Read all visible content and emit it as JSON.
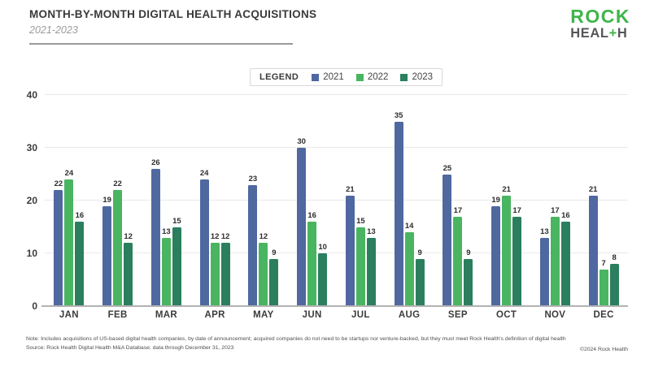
{
  "header": {
    "title": "MONTH-BY-MONTH DIGITAL HEALTH ACQUISITIONS",
    "subtitle": "2021-2023"
  },
  "logo": {
    "line1": "ROCK",
    "line2_pre": "HEAL",
    "line2_plus": "+",
    "line2_post": "H",
    "green": "#3eb549",
    "gray": "#54565a"
  },
  "legend": {
    "label": "LEGEND"
  },
  "chart_data": {
    "type": "bar",
    "title": "MONTH-BY-MONTH DIGITAL HEALTH ACQUISITIONS",
    "subtitle": "2021-2023",
    "categories": [
      "JAN",
      "FEB",
      "MAR",
      "APR",
      "MAY",
      "JUN",
      "JUL",
      "AUG",
      "SEP",
      "OCT",
      "NOV",
      "DEC"
    ],
    "series": [
      {
        "name": "2021",
        "color": "#4f68a0",
        "values": [
          22,
          19,
          26,
          24,
          23,
          30,
          21,
          35,
          25,
          19,
          13,
          21
        ]
      },
      {
        "name": "2022",
        "color": "#49b561",
        "values": [
          24,
          22,
          13,
          12,
          12,
          16,
          15,
          14,
          17,
          21,
          17,
          7
        ]
      },
      {
        "name": "2023",
        "color": "#2b7f5e",
        "values": [
          16,
          12,
          15,
          12,
          9,
          10,
          13,
          9,
          9,
          17,
          16,
          8
        ]
      }
    ],
    "xlabel": "",
    "ylabel": "",
    "ylim": [
      0,
      40
    ],
    "yticks": [
      0,
      10,
      20,
      30,
      40
    ],
    "grid": true,
    "value_labels": true,
    "legend_position": "top-center"
  },
  "footer": {
    "note": "Note: Includes acquisitions of US-based digital health companies, by date of announcement; acquired companies do not need to be startups nor venture-backed, but they must meet Rock Health's definition of digital health",
    "source": "Source: Rock Health Digital Health M&A Database; data through December 31, 2023",
    "copyright": "©2024 Rock Health"
  }
}
